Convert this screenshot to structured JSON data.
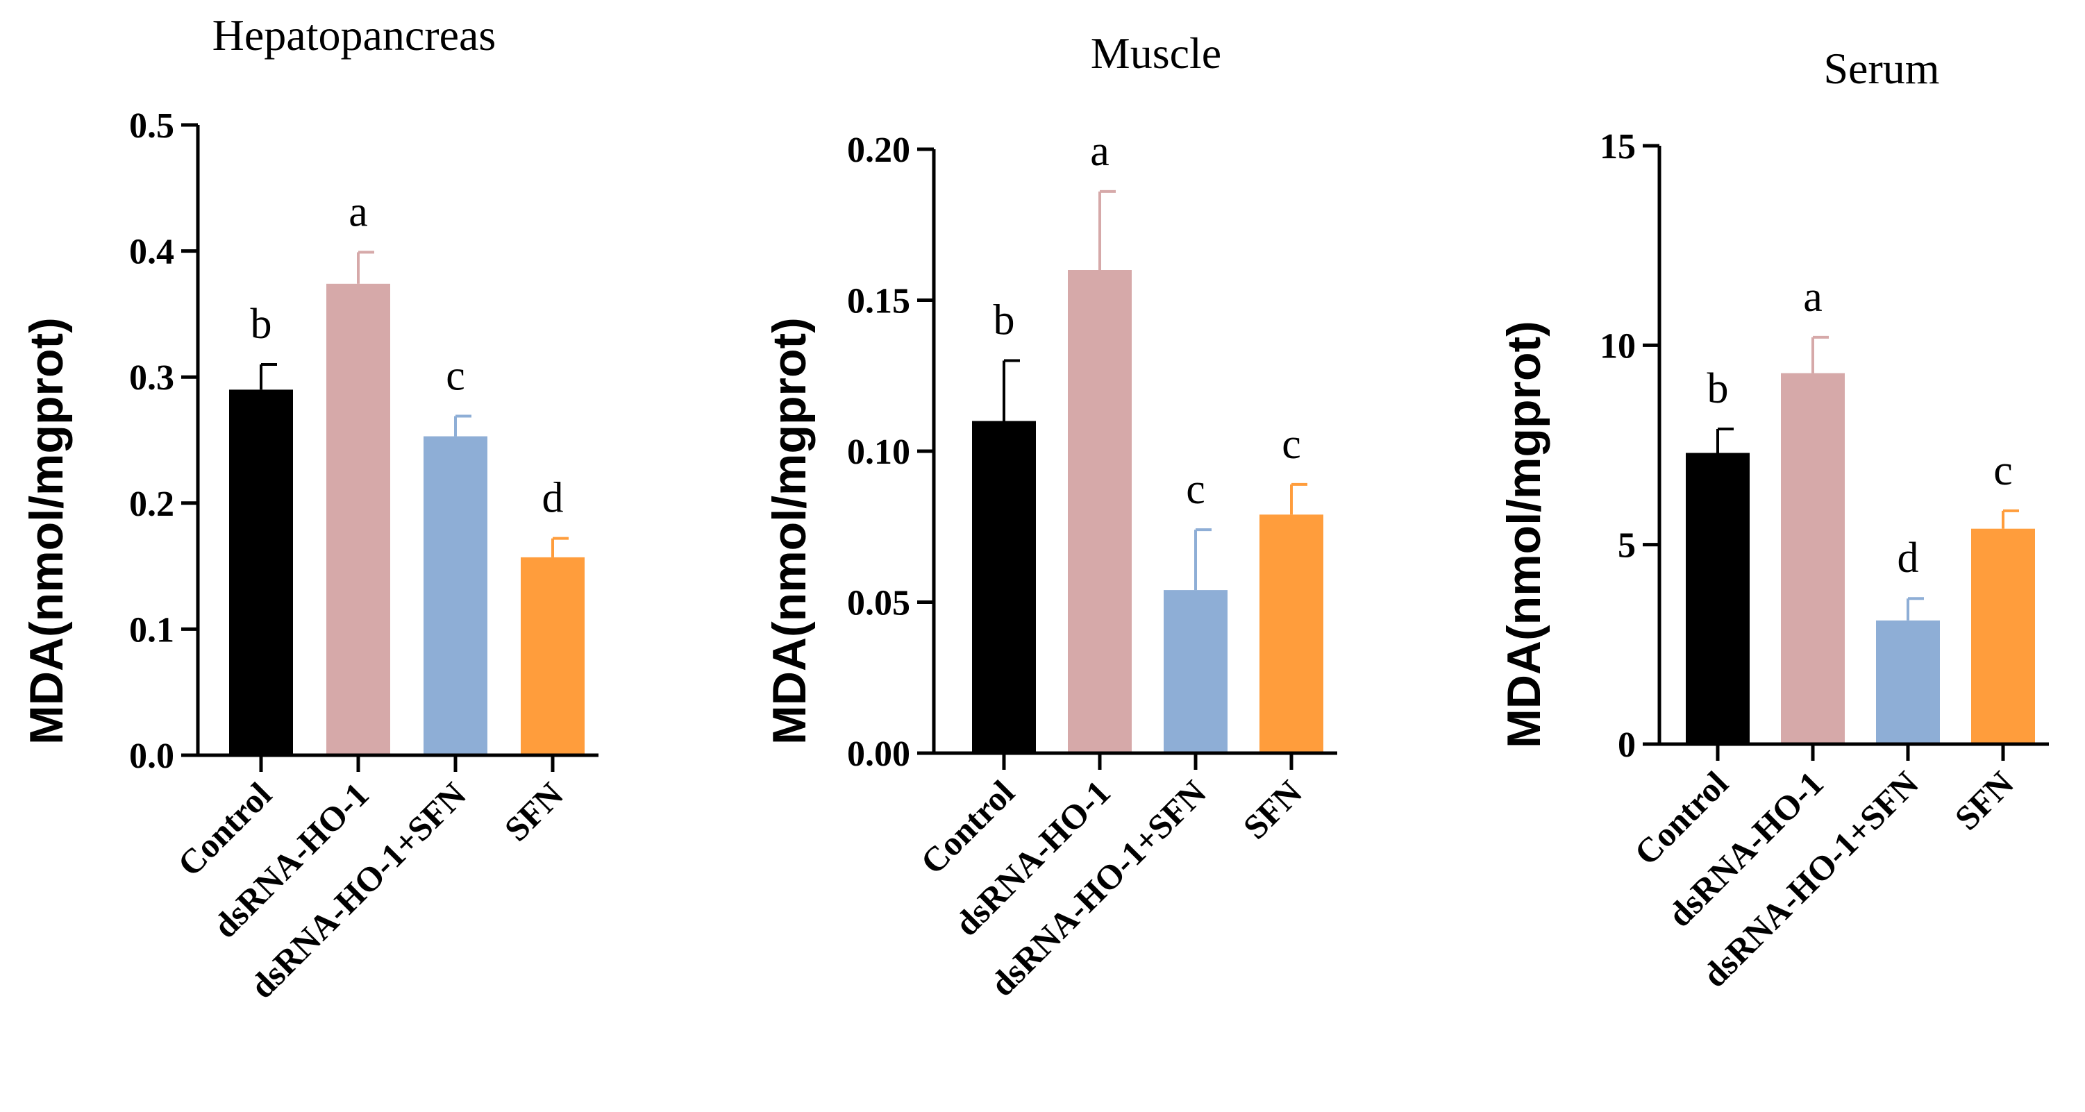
{
  "colors": {
    "Control": "#000000",
    "dsRNA-HO-1": "#d6a9a9",
    "dsRNA-HO-1+SFN": "#8eaed6",
    "SFN": "#ff9d3c"
  },
  "chart_data": [
    {
      "type": "bar",
      "title": "Hepatopancreas",
      "ylabel": "MDA(nmol/mgprot)",
      "xlabel": "",
      "categories": [
        "Control",
        "dsRNA-HO-1",
        "dsRNA-HO-1+SFN",
        "SFN"
      ],
      "values": [
        0.29,
        0.374,
        0.253,
        0.157
      ],
      "errors": [
        0.02,
        0.025,
        0.016,
        0.015
      ],
      "significance": [
        "b",
        "a",
        "c",
        "d"
      ],
      "ylim": [
        0,
        0.5
      ],
      "yticks": [
        0.0,
        0.1,
        0.2,
        0.3,
        0.4,
        0.5
      ],
      "ytick_labels": [
        "0.0",
        "0.1",
        "0.2",
        "0.3",
        "0.4",
        "0.5"
      ]
    },
    {
      "type": "bar",
      "title": "Muscle",
      "ylabel": "MDA(nmol/mgprot)",
      "xlabel": "",
      "categories": [
        "Control",
        "dsRNA-HO-1",
        "dsRNA-HO-1+SFN",
        "SFN"
      ],
      "values": [
        0.11,
        0.16,
        0.054,
        0.079
      ],
      "errors": [
        0.02,
        0.026,
        0.02,
        0.01
      ],
      "significance": [
        "b",
        "a",
        "c",
        "c"
      ],
      "ylim": [
        0,
        0.2
      ],
      "yticks": [
        0.0,
        0.05,
        0.1,
        0.15,
        0.2
      ],
      "ytick_labels": [
        "0.00",
        "0.05",
        "0.10",
        "0.15",
        "0.20"
      ]
    },
    {
      "type": "bar",
      "title": "Serum",
      "ylabel": "MDA(nmol/mgprot)",
      "xlabel": "",
      "categories": [
        "Control",
        "dsRNA-HO-1",
        "dsRNA-HO-1+SFN",
        "SFN"
      ],
      "values": [
        7.3,
        9.3,
        3.1,
        5.4
      ],
      "errors": [
        0.6,
        0.9,
        0.55,
        0.45
      ],
      "significance": [
        "b",
        "a",
        "d",
        "c"
      ],
      "ylim": [
        0,
        15
      ],
      "yticks": [
        0,
        5,
        10,
        15
      ],
      "ytick_labels": [
        "0",
        "5",
        "10",
        "15"
      ]
    }
  ]
}
